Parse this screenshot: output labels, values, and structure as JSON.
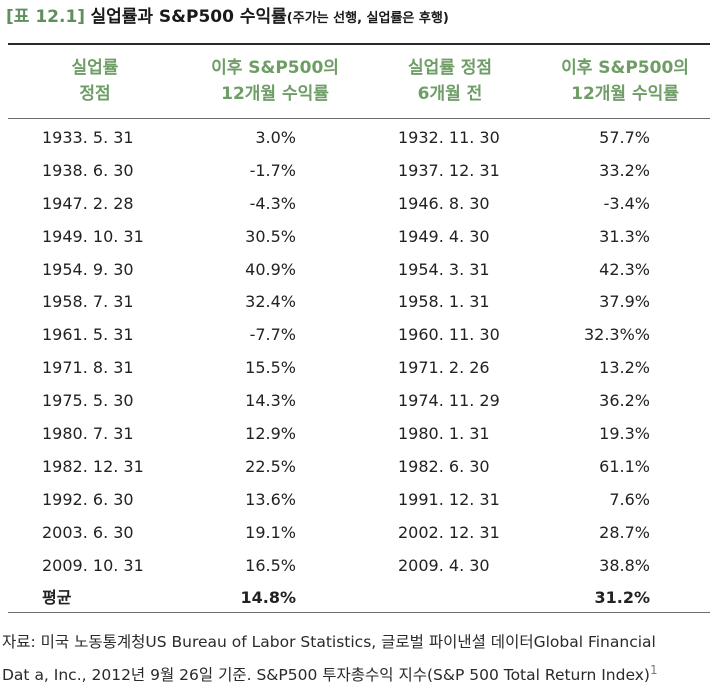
{
  "table_tag": "[표 12.1]",
  "title": "실업률과 S&P500 수익률",
  "subtitle": "(주가는 선행, 실업률은 후행)",
  "headers": {
    "col1": [
      "실업률",
      "정점"
    ],
    "col2": [
      "이후 S&P500의",
      "12개월 수익률"
    ],
    "col3": [
      "실업률 정점",
      "6개월 전"
    ],
    "col4": [
      "이후 S&P500의",
      "12개월 수익률"
    ]
  },
  "rows": [
    [
      "1933. 5. 31",
      "3.0%",
      "1932. 11. 30",
      "57.7%"
    ],
    [
      "1938. 6. 30",
      "-1.7%",
      "1937. 12. 31",
      "33.2%"
    ],
    [
      "1947. 2. 28",
      "-4.3%",
      "1946. 8. 30",
      "-3.4%"
    ],
    [
      "1949. 10. 31",
      "30.5%",
      "1949. 4. 30",
      "31.3%"
    ],
    [
      "1954. 9. 30",
      "40.9%",
      "1954. 3. 31",
      "42.3%"
    ],
    [
      "1958. 7. 31",
      "32.4%",
      "1958. 1. 31",
      "37.9%"
    ],
    [
      "1961. 5. 31",
      "-7.7%",
      "1960. 11. 30",
      "32.3%%"
    ],
    [
      "1971. 8. 31",
      "15.5%",
      "1971. 2. 26",
      "13.2%"
    ],
    [
      "1975. 5. 30",
      "14.3%",
      "1974. 11. 29",
      "36.2%"
    ],
    [
      "1980. 7. 31",
      "12.9%",
      "1980. 1. 31",
      "19.3%"
    ],
    [
      "1982. 12. 31",
      "22.5%",
      "1982. 6. 30",
      "61.1%"
    ],
    [
      "1992. 6. 30",
      "13.6%",
      "1991. 12. 31",
      "7.6%"
    ],
    [
      "2003. 6. 30",
      "19.1%",
      "2002. 12. 31",
      "28.7%"
    ],
    [
      "2009. 10. 31",
      "16.5%",
      "2009. 4. 30",
      "38.8%"
    ]
  ],
  "average": [
    "평균",
    "14.8%",
    "",
    "31.2%"
  ],
  "source": {
    "line1": "자료: 미국 노동통계청US Bureau of Labor Statistics, 글로벌 파이낸셜 데이터Global Financial",
    "line2": "Dat a, Inc., 2012년 9월 26일 기준. S&P500 투자총수익 지수(S&P 500 Total Return Index)",
    "footnote_mark": "1"
  },
  "colors": {
    "accent_green": "#6e9d66",
    "tag_green": "#5f8f5f",
    "text": "#222222",
    "rule": "#2a2a2a"
  }
}
